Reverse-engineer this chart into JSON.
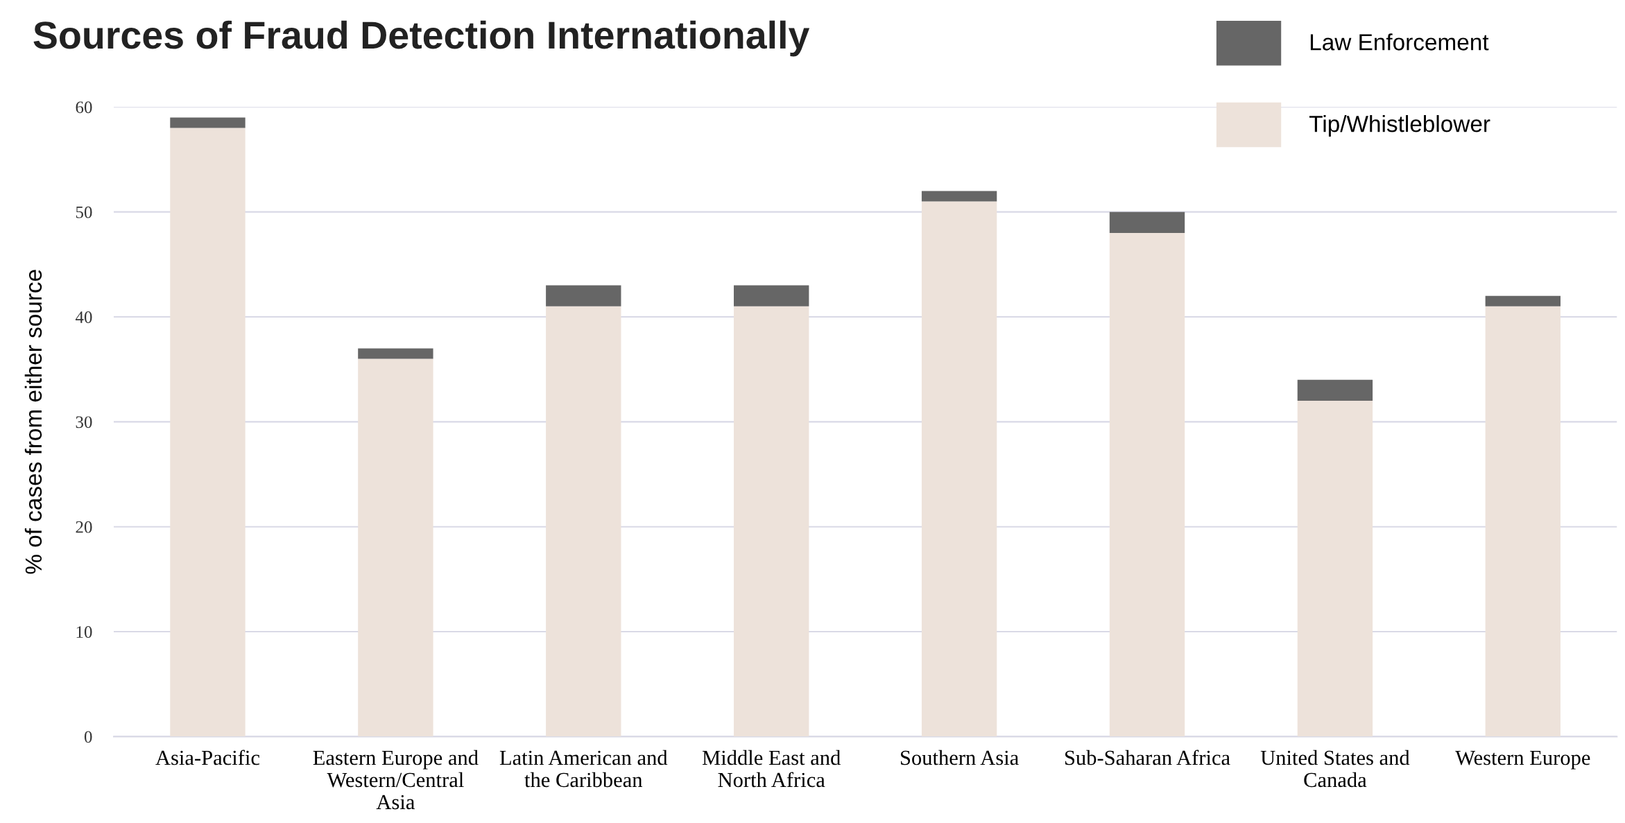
{
  "chart_data": {
    "type": "bar",
    "title": "Sources of Fraud Detection Internationally",
    "ylabel": "% of cases from either source",
    "categories": [
      "Asia-Pacific",
      "Eastern Europe and\nWestern/Central\nAsia",
      "Latin American and\nthe Caribbean",
      "Middle East and\nNorth Africa",
      "Southern Asia",
      "Sub-Saharan Africa",
      "United States and\nCanada",
      "Western Europe"
    ],
    "series": [
      {
        "name": "Tip/Whistleblower",
        "color": "#ede2da",
        "values": [
          58,
          36,
          41,
          41,
          51,
          48,
          32,
          41
        ]
      },
      {
        "name": "Law Enforcement",
        "color": "#666666",
        "values": [
          1,
          1,
          2,
          2,
          1,
          2,
          2,
          1
        ]
      }
    ],
    "stacked": true,
    "ylim": [
      0,
      60
    ],
    "yticks": [
      0,
      10,
      20,
      30,
      40,
      50,
      60
    ],
    "grid": "y",
    "legend": "top right"
  }
}
